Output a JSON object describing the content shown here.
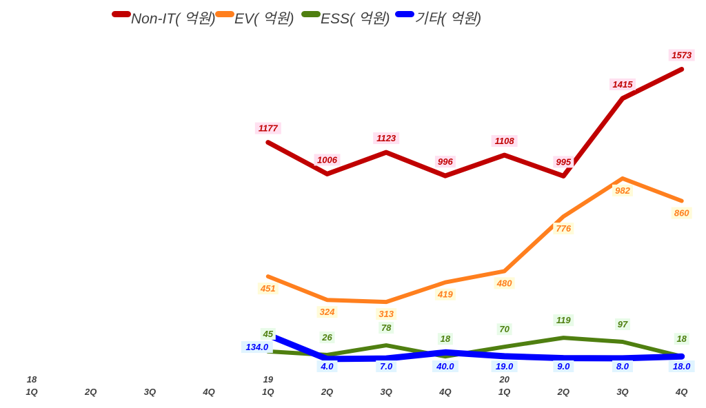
{
  "chart_data": {
    "type": "line",
    "title": "",
    "xlabel": "",
    "ylabel": "",
    "ylim": [
      0,
      1948
    ],
    "grid": false,
    "legend_position": "top",
    "categories": [
      "1Q",
      "2Q",
      "3Q",
      "4Q",
      "1Q",
      "2Q",
      "3Q",
      "4Q",
      "1Q",
      "2Q",
      "3Q",
      "4Q"
    ],
    "year_labels": [
      "18",
      "",
      "",
      "",
      "19",
      "",
      "",
      "",
      "20",
      "",
      "",
      ""
    ],
    "series": [
      {
        "name": "Non-IT( 억원)",
        "color": "#C00000",
        "label_bg": "#FFE0F0",
        "values": [
          null,
          null,
          null,
          null,
          1177,
          1006,
          1123,
          996,
          1108,
          995,
          1415,
          1573
        ],
        "labels": [
          "",
          "",
          "",
          "",
          "1177",
          "1006",
          "1123",
          "996",
          "1108",
          "995",
          "1415",
          "1573"
        ]
      },
      {
        "name": "EV( 억원)",
        "color": "#FF7F1E",
        "label_bg": "#FFFBD8",
        "values": [
          null,
          null,
          null,
          null,
          451,
          324,
          313,
          419,
          480,
          776,
          982,
          860
        ],
        "labels": [
          "",
          "",
          "",
          "",
          "451",
          "324",
          "313",
          "419",
          "480",
          "776",
          "982",
          "860"
        ]
      },
      {
        "name": "ESS( 억원)",
        "color": "#4F7F10",
        "label_bg": "#E8FBE8",
        "values": [
          null,
          null,
          null,
          null,
          45,
          26,
          78,
          18,
          70,
          119,
          97,
          18
        ],
        "labels": [
          "",
          "",
          "",
          "",
          "45",
          "26",
          "78",
          "18",
          "70",
          "119",
          "97",
          "18"
        ]
      },
      {
        "name": "기타( 억원)",
        "color": "#0000FF",
        "label_bg": "#E0F4FF",
        "values": [
          null,
          null,
          null,
          null,
          134.0,
          4.0,
          7.0,
          40.0,
          19.0,
          9.0,
          8.0,
          18.0
        ],
        "labels": [
          "",
          "",
          "",
          "",
          "134.0",
          "4.0",
          "7.0",
          "40.0",
          "19.0",
          "9.0",
          "8.0",
          "18.0"
        ]
      }
    ]
  }
}
